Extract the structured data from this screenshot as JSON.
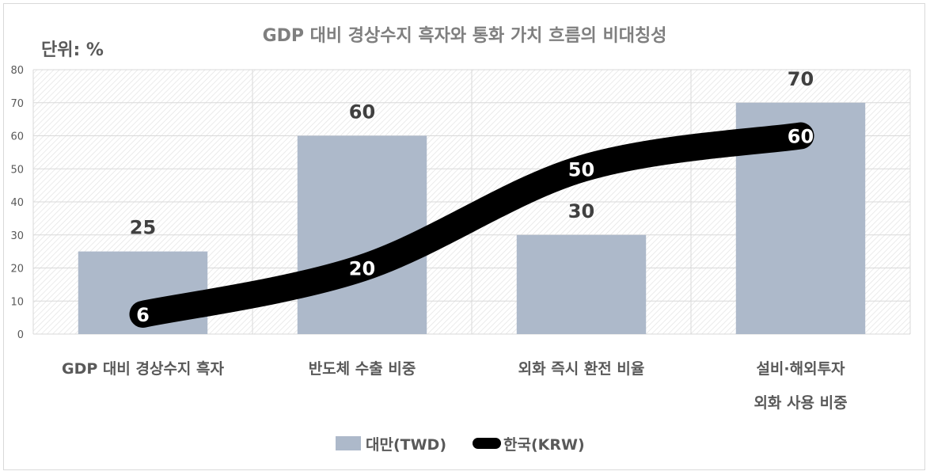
{
  "chart_data": {
    "type": "bar",
    "title": "GDP 대비 경상수지 흑자와 통화 가치 흐름의 비대칭성",
    "unit_label": "단위: %",
    "categories": [
      [
        "GDP 대비 경상수지 흑자"
      ],
      [
        "반도체 수출 비중"
      ],
      [
        "외화 즉시 환전 비율"
      ],
      [
        "설비·해외투자",
        "외화 사용 비중"
      ]
    ],
    "series": [
      {
        "name": "대만(TWD)",
        "type": "bar",
        "color": "#adb9ca",
        "values": [
          25,
          60,
          30,
          70
        ]
      },
      {
        "name": "한국(KRW)",
        "type": "line",
        "color": "#000000",
        "values": [
          6,
          20,
          50,
          60
        ]
      }
    ],
    "ylim": [
      0,
      80
    ],
    "yticks": [
      0,
      10,
      20,
      30,
      40,
      50,
      60,
      70,
      80
    ],
    "grid": true,
    "legend_position": "bottom"
  }
}
